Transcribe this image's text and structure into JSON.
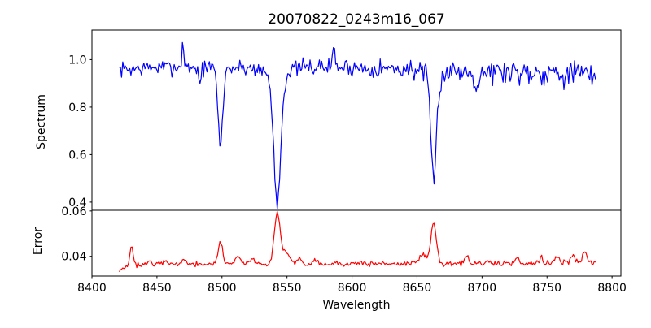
{
  "chart_data": {
    "type": "line",
    "title": "20070822_0243m16_067",
    "xlabel": "Wavelength",
    "xlim": [
      8400,
      8806.8
    ],
    "xticks": [
      8400,
      8450,
      8500,
      8550,
      8600,
      8650,
      8700,
      8750,
      8800
    ],
    "x_range_data": [
      8421,
      8788
    ],
    "sample_step": 0.9,
    "noise_seed": 7,
    "grid": false,
    "legend": "none",
    "panels": [
      {
        "name": "spectrum",
        "ylabel": "Spectrum",
        "ylim": [
          0.3655,
          1.1245
        ],
        "yticks": [
          0.4,
          0.6,
          0.8,
          1.0
        ],
        "series": {
          "name": "flux",
          "color": "#0000ff",
          "continuum": [
            [
              8421,
              0.958
            ],
            [
              8445,
              0.966
            ],
            [
              8460,
              0.968
            ],
            [
              8520,
              0.965
            ],
            [
              8580,
              0.97
            ],
            [
              8640,
              0.96
            ],
            [
              8700,
              0.95
            ],
            [
              8755,
              0.948
            ],
            [
              8775,
              0.94
            ],
            [
              8788,
              0.92
            ]
          ],
          "noise_sigma": [
            [
              8421,
              0.016
            ],
            [
              8580,
              0.017
            ],
            [
              8640,
              0.02
            ],
            [
              8680,
              0.026
            ],
            [
              8788,
              0.03
            ]
          ],
          "absorption_lines": [
            {
              "center": 8498.8,
              "depth": 0.33,
              "sigma": 1.8
            },
            {
              "center": 8542.5,
              "depth": 0.52,
              "sigma": 2.6
            },
            {
              "center": 8542.5,
              "depth": 0.05,
              "sigma": 7.0
            },
            {
              "center": 8662.8,
              "depth": 0.43,
              "sigma": 2.2
            },
            {
              "center": 8662.8,
              "depth": 0.03,
              "sigma": 6.0
            }
          ],
          "spikes": [
            {
              "center": 8470.0,
              "height": 0.105,
              "sigma": 0.8
            },
            {
              "center": 8586.0,
              "height": 0.095,
              "sigma": 0.8
            },
            {
              "center": 8483.0,
              "height": -0.06,
              "sigma": 1.0
            },
            {
              "center": 8696.0,
              "height": -0.07,
              "sigma": 1.2
            }
          ],
          "line_minima": {
            "8498.8": 0.63,
            "8542.5": 0.4,
            "8662.8": 0.5
          }
        }
      },
      {
        "name": "error",
        "ylabel": "Error",
        "ylim": [
          0.0313,
          0.0603
        ],
        "yticks": [
          0.04,
          0.06
        ],
        "series": {
          "name": "error",
          "color": "#ff0000",
          "continuum": [
            [
              8421,
              0.0338
            ],
            [
              8428,
              0.0362
            ],
            [
              8480,
              0.0366
            ],
            [
              8560,
              0.0367
            ],
            [
              8650,
              0.0368
            ],
            [
              8720,
              0.037
            ],
            [
              8788,
              0.0374
            ]
          ],
          "noise_sigma": [
            [
              8421,
              0.0005
            ],
            [
              8650,
              0.0006
            ],
            [
              8788,
              0.00075
            ]
          ],
          "absorption_lines": [],
          "spikes": [
            {
              "center": 8430.5,
              "height": 0.0082,
              "sigma": 1.2
            },
            {
              "center": 8444.0,
              "height": 0.0015,
              "sigma": 1.5
            },
            {
              "center": 8457.0,
              "height": 0.002,
              "sigma": 1.5
            },
            {
              "center": 8470.5,
              "height": 0.0028,
              "sigma": 1.3
            },
            {
              "center": 8498.8,
              "height": 0.0095,
              "sigma": 1.8
            },
            {
              "center": 8512.0,
              "height": 0.0035,
              "sigma": 2.0
            },
            {
              "center": 8523.0,
              "height": 0.0028,
              "sigma": 1.5
            },
            {
              "center": 8542.5,
              "height": 0.0222,
              "sigma": 2.2
            },
            {
              "center": 8549.0,
              "height": 0.005,
              "sigma": 3.0
            },
            {
              "center": 8560.0,
              "height": 0.0025,
              "sigma": 1.5
            },
            {
              "center": 8572.0,
              "height": 0.002,
              "sigma": 1.5
            },
            {
              "center": 8655.0,
              "height": 0.004,
              "sigma": 3.0
            },
            {
              "center": 8662.8,
              "height": 0.0178,
              "sigma": 2.0
            },
            {
              "center": 8688.0,
              "height": 0.003,
              "sigma": 1.3
            },
            {
              "center": 8727.0,
              "height": 0.0022,
              "sigma": 1.3
            },
            {
              "center": 8745.0,
              "height": 0.0025,
              "sigma": 1.3
            },
            {
              "center": 8757.0,
              "height": 0.003,
              "sigma": 1.5
            },
            {
              "center": 8770.0,
              "height": 0.0035,
              "sigma": 1.5
            },
            {
              "center": 8779.0,
              "height": 0.004,
              "sigma": 1.5
            }
          ],
          "peak_maxima": {
            "8430": 0.045,
            "8498": 0.046,
            "8542": 0.059,
            "8662": 0.055
          }
        }
      }
    ],
    "colors": {
      "spectrum_line": "#0000ff",
      "error_line": "#ff0000",
      "axes": "#000000",
      "background": "#ffffff"
    }
  }
}
